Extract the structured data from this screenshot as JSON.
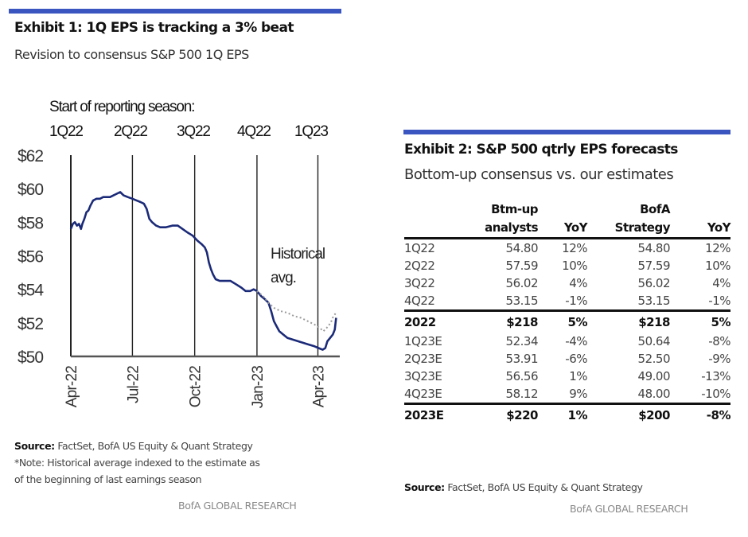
{
  "exhibit1": {
    "title": "Exhibit 1: 1Q EPS is tracking a 3% beat",
    "subtitle": "Revision to consensus S&P 500 1Q EPS",
    "source_label": "Source:",
    "source_text": " FactSet, BofA US Equity & Quant Strategy",
    "note_line1": "*Note: Historical average indexed to the estimate as",
    "note_line2": "of the beginning  of last earnings season",
    "brand": "BofA GLOBAL RESEARCH",
    "accent_color": "#3a55c0",
    "line_color": "#1b2a78",
    "avg_color": "#9a9a9a"
  },
  "chart_data": {
    "type": "line",
    "title": "Exhibit 1: 1Q EPS is tracking a 3% beat",
    "subtitle": "Revision to consensus S&P 500 1Q EPS",
    "xlabel": "",
    "ylabel": "",
    "ylim": [
      50,
      62
    ],
    "yticks": [
      "$50",
      "$52",
      "$54",
      "$56",
      "$58",
      "$60",
      "$62"
    ],
    "ytick_values": [
      50,
      52,
      54,
      56,
      58,
      60,
      62
    ],
    "xticks": [
      "Apr-22",
      "Jul-22",
      "Oct-22",
      "Jan-23",
      "Apr-23"
    ],
    "xtick_days": [
      0,
      91,
      183,
      275,
      365
    ],
    "x_unit": "days since 2022-04-01",
    "xlim_days": [
      0,
      395
    ],
    "grid": false,
    "season_label": "Start of reporting  season:",
    "season_markers": [
      {
        "label": "1Q22",
        "day": 0
      },
      {
        "label": "2Q22",
        "day": 91
      },
      {
        "label": "3Q22",
        "day": 183
      },
      {
        "label": "4Q22",
        "day": 275
      },
      {
        "label": "1Q23",
        "day": 365
      }
    ],
    "annotations": [
      {
        "text": "Historical",
        "text2": "avg."
      }
    ],
    "series": [
      {
        "name": "Consensus 1Q23 EPS",
        "style": "solid",
        "points": [
          [
            0,
            57.6
          ],
          [
            3,
            57.9
          ],
          [
            6,
            58.0
          ],
          [
            9,
            57.8
          ],
          [
            12,
            57.9
          ],
          [
            15,
            57.6
          ],
          [
            17,
            57.9
          ],
          [
            20,
            58.2
          ],
          [
            23,
            58.6
          ],
          [
            26,
            58.7
          ],
          [
            29,
            59.0
          ],
          [
            33,
            59.3
          ],
          [
            38,
            59.4
          ],
          [
            43,
            59.4
          ],
          [
            48,
            59.5
          ],
          [
            53,
            59.5
          ],
          [
            58,
            59.5
          ],
          [
            63,
            59.6
          ],
          [
            68,
            59.7
          ],
          [
            73,
            59.8
          ],
          [
            78,
            59.6
          ],
          [
            84,
            59.5
          ],
          [
            91,
            59.4
          ],
          [
            97,
            59.3
          ],
          [
            103,
            59.2
          ],
          [
            108,
            59.1
          ],
          [
            112,
            58.8
          ],
          [
            116,
            58.2
          ],
          [
            120,
            58.0
          ],
          [
            126,
            57.8
          ],
          [
            132,
            57.7
          ],
          [
            140,
            57.7
          ],
          [
            150,
            57.8
          ],
          [
            158,
            57.8
          ],
          [
            165,
            57.6
          ],
          [
            172,
            57.4
          ],
          [
            180,
            57.2
          ],
          [
            187,
            56.9
          ],
          [
            193,
            56.7
          ],
          [
            198,
            56.5
          ],
          [
            201,
            56.2
          ],
          [
            204,
            55.6
          ],
          [
            207,
            55.2
          ],
          [
            210,
            54.9
          ],
          [
            214,
            54.6
          ],
          [
            220,
            54.5
          ],
          [
            228,
            54.5
          ],
          [
            236,
            54.5
          ],
          [
            244,
            54.3
          ],
          [
            252,
            54.1
          ],
          [
            258,
            53.9
          ],
          [
            265,
            53.9
          ],
          [
            270,
            54.0
          ],
          [
            275,
            53.9
          ],
          [
            281,
            53.6
          ],
          [
            287,
            53.4
          ],
          [
            292,
            53.2
          ],
          [
            296,
            52.7
          ],
          [
            300,
            52.1
          ],
          [
            304,
            51.8
          ],
          [
            308,
            51.5
          ],
          [
            314,
            51.3
          ],
          [
            320,
            51.1
          ],
          [
            328,
            51.0
          ],
          [
            336,
            50.9
          ],
          [
            344,
            50.8
          ],
          [
            352,
            50.7
          ],
          [
            360,
            50.6
          ],
          [
            366,
            50.5
          ],
          [
            372,
            50.4
          ],
          [
            376,
            50.5
          ],
          [
            379,
            50.9
          ],
          [
            383,
            51.1
          ],
          [
            387,
            51.3
          ],
          [
            390,
            51.6
          ],
          [
            392,
            52.3
          ]
        ]
      },
      {
        "name": "Historical avg.",
        "style": "dotted",
        "points": [
          [
            275,
            53.9
          ],
          [
            284,
            53.6
          ],
          [
            292,
            53.2
          ],
          [
            300,
            52.9
          ],
          [
            310,
            52.7
          ],
          [
            320,
            52.6
          ],
          [
            330,
            52.4
          ],
          [
            340,
            52.3
          ],
          [
            350,
            52.1
          ],
          [
            360,
            51.9
          ],
          [
            368,
            51.7
          ],
          [
            373,
            51.5
          ],
          [
            378,
            51.7
          ],
          [
            384,
            52.0
          ],
          [
            388,
            52.4
          ],
          [
            392,
            52.6
          ]
        ]
      }
    ]
  },
  "exhibit2": {
    "title": "Exhibit 2: S&P 500 qtrly EPS forecasts",
    "subtitle": "Bottom-up consensus vs. our estimates",
    "source_label": "Source:",
    "source_text": "  FactSet, BofA US Equity & Quant Strategy",
    "brand": "BofA GLOBAL RESEARCH",
    "headers": [
      {
        "line1": "",
        "line2": ""
      },
      {
        "line1": "Btm-up",
        "line2": "analysts"
      },
      {
        "line1": "",
        "line2": "YoY"
      },
      {
        "line1": "BofA",
        "line2": "Strategy"
      },
      {
        "line1": "",
        "line2": "YoY"
      }
    ],
    "rows": [
      {
        "period": "1Q22",
        "btm": "54.80",
        "btm_yoy": "12%",
        "bofa": "54.80",
        "bofa_yoy": "12%"
      },
      {
        "period": "2Q22",
        "btm": "57.59",
        "btm_yoy": "10%",
        "bofa": "57.59",
        "bofa_yoy": "10%"
      },
      {
        "period": "3Q22",
        "btm": "56.02",
        "btm_yoy": "4%",
        "bofa": "56.02",
        "bofa_yoy": "4%"
      },
      {
        "period": "4Q22",
        "btm": "53.15",
        "btm_yoy": "-1%",
        "bofa": "53.15",
        "bofa_yoy": "-1%"
      },
      {
        "period": "2022",
        "btm": "$218",
        "btm_yoy": "5%",
        "bofa": "$218",
        "bofa_yoy": "5%"
      },
      {
        "period": "1Q23E",
        "btm": "52.34",
        "btm_yoy": "-4%",
        "bofa": "50.64",
        "bofa_yoy": "-8%"
      },
      {
        "period": "2Q23E",
        "btm": "53.91",
        "btm_yoy": "-6%",
        "bofa": "52.50",
        "bofa_yoy": "-9%"
      },
      {
        "period": "3Q23E",
        "btm": "56.56",
        "btm_yoy": "1%",
        "bofa": "49.00",
        "bofa_yoy": "-13%"
      },
      {
        "period": "4Q23E",
        "btm": "58.12",
        "btm_yoy": "9%",
        "bofa": "48.00",
        "bofa_yoy": "-10%"
      },
      {
        "period": "2023E",
        "btm": "$220",
        "btm_yoy": "1%",
        "bofa": "$200",
        "bofa_yoy": "-8%"
      }
    ]
  }
}
